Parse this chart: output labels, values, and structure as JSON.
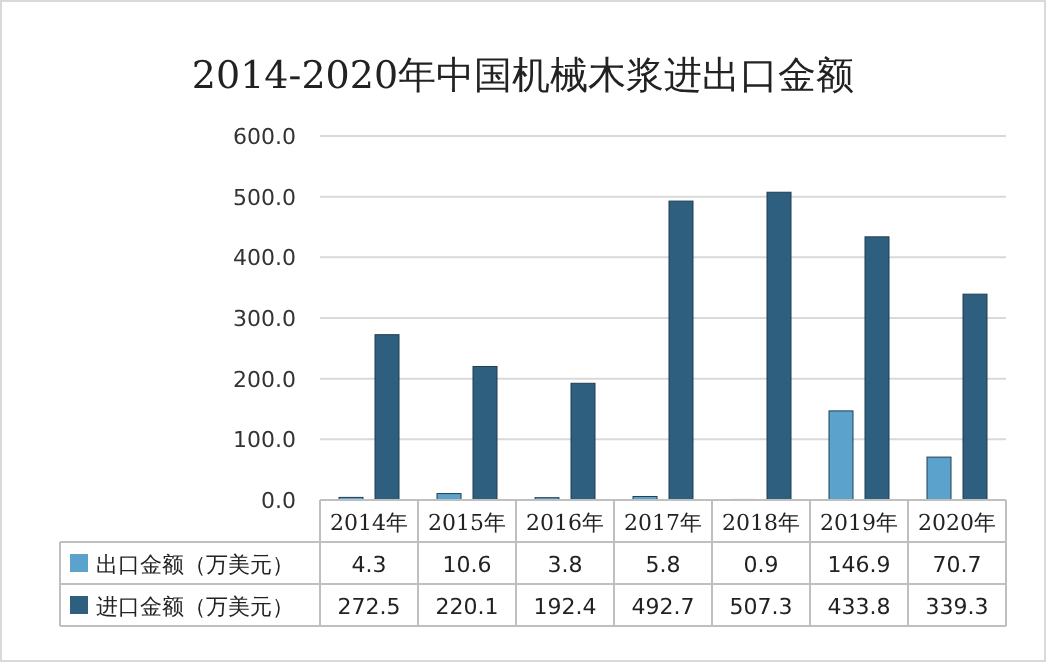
{
  "chart_data": {
    "type": "bar",
    "title": "2014-2020年中国机械木浆进出口金额",
    "categories": [
      "2014年",
      "2015年",
      "2016年",
      "2017年",
      "2018年",
      "2019年",
      "2020年"
    ],
    "series": [
      {
        "name": "出口金额（万美元）",
        "color": "#5ba3cc",
        "values": [
          4.3,
          10.6,
          3.8,
          5.8,
          0.9,
          146.9,
          70.7
        ]
      },
      {
        "name": "进口金额（万美元）",
        "color": "#2f5f7e",
        "values": [
          272.5,
          220.1,
          192.4,
          492.7,
          507.3,
          433.8,
          339.3
        ]
      }
    ],
    "ylim": [
      0,
      600
    ],
    "yticks": [
      {
        "value": 0,
        "label": "0.0"
      },
      {
        "value": 100,
        "label": "100.0"
      },
      {
        "value": 200,
        "label": "200.0"
      },
      {
        "value": 300,
        "label": "300.0"
      },
      {
        "value": 400,
        "label": "400.0"
      },
      {
        "value": 500,
        "label": "500.0"
      },
      {
        "value": 600,
        "label": "600.0"
      }
    ],
    "grid": "y",
    "legend": "bottom",
    "data_labels": true
  }
}
